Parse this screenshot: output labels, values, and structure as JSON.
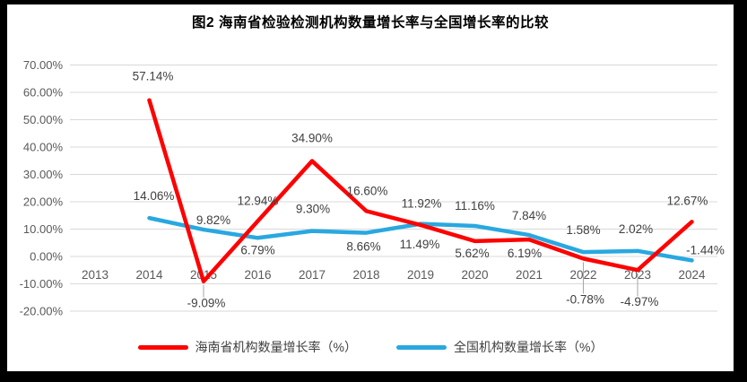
{
  "title": "图2 海南省检验检测机构数量增长率与全国增长率的比较",
  "colors": {
    "hainan": "#FE0000",
    "national": "#29A8E0",
    "gridline": "#D9D9D9",
    "axis_text": "#595959",
    "data_label_text": "#404040",
    "leader_line": "#A6A6A6",
    "frame": "#000000",
    "background": "#FFFFFF",
    "title_text": "#000000",
    "legend_text": "#404040"
  },
  "chart_data": {
    "type": "line",
    "title": "图2 海南省检验检测机构数量增长率与全国增长率的比较",
    "categories": [
      "2013",
      "2014",
      "2015",
      "2016",
      "2017",
      "2018",
      "2019",
      "2020",
      "2021",
      "2022",
      "2023",
      "2024"
    ],
    "series": [
      {
        "name": "海南省机构数量增长率（%）",
        "color": "#FE0000",
        "values": [
          null,
          57.14,
          -9.09,
          12.94,
          34.9,
          16.6,
          11.49,
          5.62,
          6.19,
          -0.78,
          -4.97,
          12.67
        ],
        "labels": [
          "",
          "57.14%",
          "-9.09%",
          "12.94%",
          "34.90%",
          "16.60%",
          "11.49%",
          "5.62%",
          "6.19%",
          "-0.78%",
          "-4.97%",
          "12.67%"
        ],
        "label_dx": [
          0,
          4,
          3,
          0,
          0,
          1,
          -1,
          -3,
          -5,
          2,
          2,
          -5
        ],
        "label_dy": [
          0,
          -22,
          29,
          -18,
          -21,
          -18,
          26,
          18,
          20,
          50,
          40,
          -19
        ],
        "label_leader": [
          false,
          false,
          true,
          false,
          false,
          false,
          false,
          false,
          false,
          true,
          true,
          false
        ]
      },
      {
        "name": "全国机构数量增长率（%）",
        "color": "#29A8E0",
        "values": [
          null,
          14.06,
          9.82,
          6.79,
          9.3,
          8.66,
          11.92,
          11.16,
          7.84,
          1.58,
          2.02,
          -1.44
        ],
        "labels": [
          "",
          "14.06%",
          "9.82%",
          "6.79%",
          "9.30%",
          "8.66%",
          "11.92%",
          "11.16%",
          "7.84%",
          "1.58%",
          "2.02%",
          "-1.44%"
        ],
        "label_dx": [
          0,
          5,
          11,
          0,
          1,
          -3,
          1,
          0,
          0,
          0,
          -2,
          15
        ],
        "label_dy": [
          0,
          -20,
          -6,
          18,
          -20,
          20,
          -18,
          -18,
          -17,
          -20,
          -20,
          -7
        ],
        "label_leader": [
          false,
          false,
          false,
          false,
          false,
          false,
          false,
          false,
          false,
          false,
          false,
          false
        ]
      }
    ],
    "ylim": [
      -20,
      70
    ],
    "ytick_step": 10,
    "ytick_labels": [
      "70.00%",
      "60.00%",
      "50.00%",
      "40.00%",
      "30.00%",
      "20.00%",
      "10.00%",
      "0.00%",
      "-10.00%",
      "-20.00%"
    ],
    "xlabel": "",
    "ylabel": "",
    "grid": true,
    "legend_position": "bottom"
  }
}
